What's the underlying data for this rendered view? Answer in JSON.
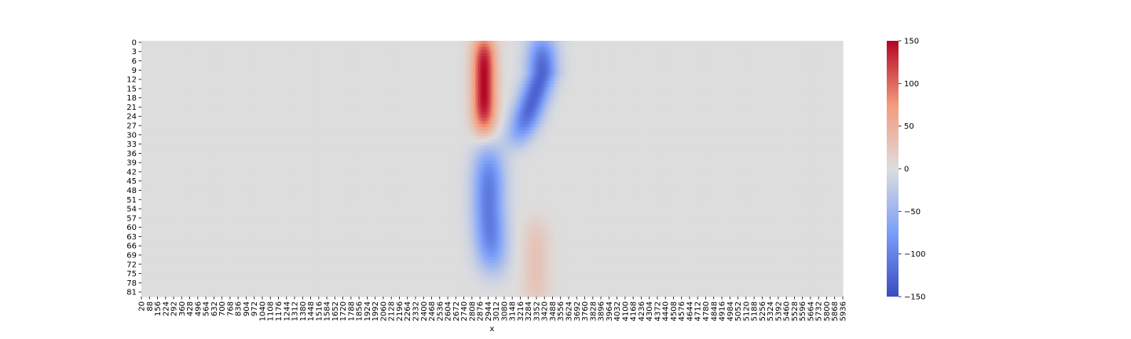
{
  "chart_data": {
    "type": "heatmap",
    "title": "",
    "xlabel": "x",
    "ylabel": "",
    "colormap": "coolwarm",
    "colors": {
      "low": "#3b4cc0",
      "mid": "#dddddd",
      "high": "#b40426"
    },
    "x_range": [
      20,
      5936
    ],
    "x_ticks": [
      "20",
      "88",
      "156",
      "224",
      "292",
      "360",
      "428",
      "496",
      "564",
      "632",
      "700",
      "768",
      "836",
      "904",
      "972",
      "1040",
      "1108",
      "1176",
      "1244",
      "1312",
      "1380",
      "1448",
      "1516",
      "1584",
      "1652",
      "1720",
      "1788",
      "1856",
      "1924",
      "1992",
      "2060",
      "2128",
      "2196",
      "2264",
      "2332",
      "2400",
      "2468",
      "2536",
      "2604",
      "2672",
      "2740",
      "2808",
      "2876",
      "2944",
      "3012",
      "3080",
      "3148",
      "3216",
      "3284",
      "3352",
      "3420",
      "3488",
      "3556",
      "3624",
      "3692",
      "3760",
      "3828",
      "3896",
      "3964",
      "4032",
      "4100",
      "4168",
      "4236",
      "4304",
      "4372",
      "4440",
      "4508",
      "4576",
      "4644",
      "4712",
      "4780",
      "4848",
      "4916",
      "4984",
      "5052",
      "5120",
      "5188",
      "5256",
      "5324",
      "5392",
      "5460",
      "5528",
      "5596",
      "5664",
      "5732",
      "5800",
      "5868",
      "5936"
    ],
    "y_ticks": [
      "0",
      "3",
      "6",
      "9",
      "12",
      "15",
      "18",
      "21",
      "24",
      "27",
      "30",
      "33",
      "36",
      "39",
      "42",
      "45",
      "48",
      "51",
      "54",
      "57",
      "60",
      "63",
      "66",
      "69",
      "72",
      "75",
      "78",
      "81"
    ],
    "rows": 83,
    "colorbar": {
      "vmin": -150,
      "vmax": 150,
      "ticks": [
        "150",
        "100",
        "50",
        "0",
        "−50",
        "−100",
        "−150"
      ]
    },
    "features": [
      {
        "desc": "positive lobe",
        "x_center": 2910,
        "x_width": 110,
        "row_top": 0,
        "row_bottom": 27,
        "peak": 150
      },
      {
        "desc": "negative lobe upper",
        "x_center": 3400,
        "x_width": 140,
        "row_top": 0,
        "row_bottom": 30,
        "peak": -130
      },
      {
        "desc": "negative lobe lower",
        "x_center": 2950,
        "x_width": 150,
        "row_top": 36,
        "row_bottom": 72,
        "peak": -110
      },
      {
        "desc": "weak positive lower",
        "x_center": 3350,
        "x_width": 130,
        "row_top": 60,
        "row_bottom": 83,
        "peak": 30
      }
    ]
  }
}
